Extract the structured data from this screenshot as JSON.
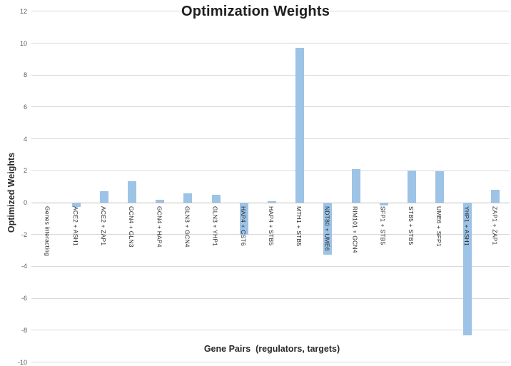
{
  "title": "Optimization Weights",
  "chart_data": {
    "type": "bar",
    "title": "Optimization Weights",
    "xlabel": "Gene Pairs  (regulators, targets)",
    "ylabel": "Optimized Weights",
    "categories": [
      "Genes interacting",
      "ACE2 + ASH1",
      "ACE2 + ZAP1",
      "GCN4 + GLN3",
      "GCN4 + HAP4",
      "GLN3 + GCN4",
      "GLN3 + YHP1",
      "HAP4 + CST6",
      "HAP4 + STB5",
      "MTH1 + STB5",
      "NDT80 + UME6",
      "RIM101 + GCN4",
      "SFP1 + STB5",
      "STB5 + STB5",
      "UME6 + SFP1",
      "YHP1 + ASH1",
      "ZAP1 + ZAP1"
    ],
    "values": [
      0,
      -0.25,
      0.7,
      1.35,
      0.2,
      0.6,
      0.5,
      -2.0,
      0.1,
      9.7,
      -3.25,
      2.1,
      -0.2,
      2.0,
      1.95,
      -8.3,
      0.8
    ],
    "yticks": [
      12,
      10,
      8,
      6,
      4,
      2,
      0,
      -2,
      -4,
      -6,
      -8,
      -10
    ],
    "ylim": [
      -10,
      12
    ],
    "grid": true,
    "legend": "none",
    "bar_color": "#9dc3e6",
    "gridline_color": "#d9d9d9",
    "zero_line_color": "#bfbfbf",
    "tick_label_color": "#595959",
    "category_label_color": "#262626"
  }
}
